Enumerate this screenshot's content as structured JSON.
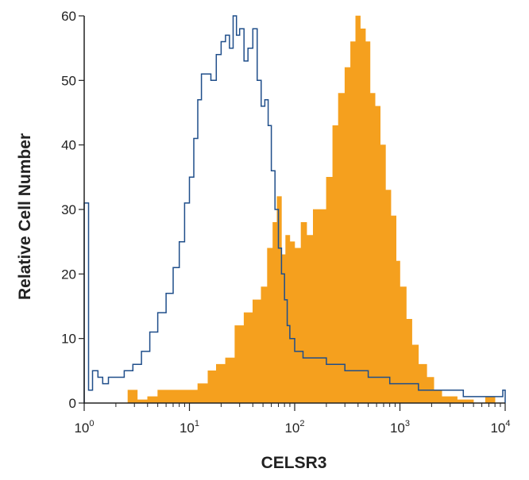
{
  "chart_data": {
    "type": "area",
    "title": "",
    "xlabel": "CELSR3",
    "ylabel": "Relative Cell Number",
    "xscale": "log",
    "xlim": [
      1,
      10000
    ],
    "ylim": [
      0,
      60
    ],
    "grid": false,
    "legend": "none",
    "x_ticks": [
      {
        "base": "10",
        "exp": "0",
        "value": 1
      },
      {
        "base": "10",
        "exp": "1",
        "value": 10
      },
      {
        "base": "10",
        "exp": "2",
        "value": 100
      },
      {
        "base": "10",
        "exp": "3",
        "value": 1000
      },
      {
        "base": "10",
        "exp": "4",
        "value": 10000
      }
    ],
    "y_ticks": [
      "0",
      "10",
      "20",
      "30",
      "40",
      "50",
      "60"
    ],
    "series": [
      {
        "kind": "filled",
        "color": "#f5a01e",
        "x": [
          1,
          2,
          2.6,
          3.2,
          4,
          5,
          6.5,
          8,
          10,
          12,
          15,
          18,
          22,
          27,
          33,
          40,
          48,
          55,
          62,
          68,
          75,
          82,
          90,
          100,
          115,
          130,
          150,
          175,
          200,
          230,
          260,
          300,
          340,
          380,
          420,
          470,
          520,
          580,
          650,
          730,
          820,
          920,
          1000,
          1150,
          1300,
          1500,
          1800,
          2100,
          2500,
          3000,
          3500,
          4200,
          5000,
          6500,
          8000,
          10000
        ],
        "y": [
          0,
          0,
          2,
          0.5,
          1,
          2,
          2,
          2,
          2,
          3,
          5,
          6,
          7,
          12,
          14,
          16,
          18,
          24,
          28,
          32,
          23,
          26,
          25,
          24,
          28,
          26,
          30,
          30,
          35,
          43,
          48,
          52,
          56,
          60,
          58,
          56,
          48,
          46,
          40,
          33,
          29,
          22,
          18,
          13,
          9,
          6,
          4,
          2,
          1,
          1,
          0.5,
          0.5,
          0,
          1,
          0,
          0
        ]
      },
      {
        "kind": "outline",
        "color": "#1f4e8a",
        "x": [
          1,
          1.05,
          1.1,
          1.2,
          1.35,
          1.5,
          1.7,
          2,
          2.4,
          2.9,
          3.5,
          4.2,
          5,
          6,
          7,
          8,
          9,
          10,
          11,
          12,
          13,
          14.5,
          16,
          18,
          20,
          22,
          24,
          26,
          28,
          30,
          33,
          36,
          40,
          44,
          48,
          52,
          56,
          60,
          65,
          70,
          75,
          80,
          85,
          90,
          100,
          120,
          150,
          200,
          300,
          500,
          800,
          1000,
          1500,
          2500,
          4000,
          7000,
          9500,
          10000
        ],
        "y": [
          31,
          31,
          2,
          5,
          4,
          3,
          4,
          4,
          5,
          6,
          8,
          11,
          14,
          17,
          21,
          25,
          31,
          35,
          41,
          47,
          51,
          51,
          50,
          54,
          56,
          57,
          55,
          60,
          57,
          58,
          53,
          55,
          58,
          50,
          46,
          47,
          43,
          36,
          30,
          24,
          20,
          16,
          12,
          10,
          8,
          7,
          7,
          6,
          5,
          4,
          3,
          3,
          2,
          2,
          1,
          1,
          2,
          0
        ]
      }
    ]
  }
}
